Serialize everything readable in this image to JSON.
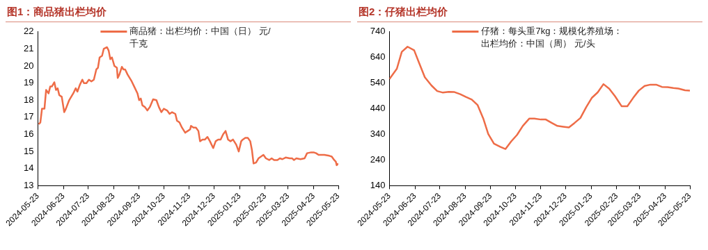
{
  "chart_data": [
    {
      "type": "line",
      "title": "图1：商品猪出栏均价",
      "legend": "top",
      "marker": "none",
      "line_style": "solid",
      "xlim": [
        "2024-05-23",
        "2025-05-23"
      ],
      "ylim": [
        13,
        22
      ],
      "yticks": [
        13,
        14,
        15,
        16,
        17,
        18,
        19,
        20,
        21,
        22
      ],
      "xticks": [
        "2024-05-23",
        "2024-06-23",
        "2024-07-23",
        "2024-08-23",
        "2024-09-23",
        "2024-10-23",
        "2024-11-23",
        "2024-12-23",
        "2025-01-23",
        "2025-02-23",
        "2025-03-23",
        "2025-04-23",
        "2025-05-23"
      ],
      "x": [
        "2024-05-24",
        "2024-05-26",
        "2024-05-28",
        "2024-05-31",
        "2024-06-02",
        "2024-06-05",
        "2024-06-07",
        "2024-06-09",
        "2024-06-12",
        "2024-06-14",
        "2024-06-16",
        "2024-06-18",
        "2024-06-21",
        "2024-06-24",
        "2024-06-26",
        "2024-06-30",
        "2024-07-05",
        "2024-07-08",
        "2024-07-10",
        "2024-07-13",
        "2024-07-16",
        "2024-07-18",
        "2024-07-21",
        "2024-07-24",
        "2024-07-27",
        "2024-07-30",
        "2024-08-02",
        "2024-08-04",
        "2024-08-06",
        "2024-08-09",
        "2024-08-11",
        "2024-08-15",
        "2024-08-17",
        "2024-08-19",
        "2024-08-21",
        "2024-08-24",
        "2024-08-27",
        "2024-08-28",
        "2024-08-30",
        "2024-09-02",
        "2024-09-04",
        "2024-09-06",
        "2024-09-09",
        "2024-09-14",
        "2024-09-17",
        "2024-09-21",
        "2024-09-23",
        "2024-09-25",
        "2024-09-27",
        "2024-09-30",
        "2024-10-03",
        "2024-10-06",
        "2024-10-10",
        "2024-10-14",
        "2024-10-17",
        "2024-10-20",
        "2024-10-23",
        "2024-10-27",
        "2024-10-30",
        "2024-11-02",
        "2024-11-06",
        "2024-11-08",
        "2024-11-11",
        "2024-11-14",
        "2024-11-18",
        "2024-11-21",
        "2024-11-24",
        "2024-11-25",
        "2024-11-28",
        "2024-12-01",
        "2024-12-04",
        "2024-12-06",
        "2024-12-09",
        "2024-12-12",
        "2024-12-15",
        "2024-12-18",
        "2024-12-22",
        "2024-12-25",
        "2024-12-28",
        "2024-12-31",
        "2025-01-03",
        "2025-01-06",
        "2025-01-09",
        "2025-01-12",
        "2025-01-15",
        "2025-01-19",
        "2025-01-22",
        "2025-01-25",
        "2025-01-27",
        "2025-01-30",
        "2025-02-02",
        "2025-02-05",
        "2025-02-07",
        "2025-02-09",
        "2025-02-12",
        "2025-02-15",
        "2025-02-18",
        "2025-02-21",
        "2025-02-24",
        "2025-02-28",
        "2025-03-03",
        "2025-03-06",
        "2025-03-10",
        "2025-03-13",
        "2025-03-16",
        "2025-03-20",
        "2025-03-25",
        "2025-03-28",
        "2025-03-30",
        "2025-04-02",
        "2025-04-07",
        "2025-04-12",
        "2025-04-15",
        "2025-04-20",
        "2025-04-23",
        "2025-04-26",
        "2025-04-29",
        "2025-05-06",
        "2025-05-12",
        "2025-05-15",
        "2025-05-18",
        "2025-05-20",
        "2025-05-21",
        "2025-05-23"
      ],
      "series": [
        {
          "name": "商品猪：出栏均价：中国（日） 元/千克",
          "color": "#ee6c47",
          "values": [
            16.6,
            16.7,
            17.5,
            17.5,
            18.6,
            18.4,
            18.8,
            18.8,
            19.05,
            18.6,
            18.7,
            18.3,
            18.2,
            17.3,
            17.5,
            18.0,
            18.4,
            18.7,
            18.5,
            18.9,
            19.2,
            19.0,
            19.0,
            19.2,
            19.1,
            19.2,
            19.8,
            19.9,
            20.5,
            20.6,
            21.0,
            21.1,
            20.9,
            20.4,
            20.5,
            20.0,
            19.9,
            19.3,
            19.5,
            19.95,
            19.8,
            19.8,
            19.5,
            19.1,
            18.8,
            18.4,
            18.0,
            18.1,
            17.7,
            17.6,
            17.4,
            17.6,
            18.05,
            18.0,
            17.6,
            17.3,
            17.5,
            17.4,
            17.2,
            17.3,
            17.2,
            16.8,
            16.7,
            16.4,
            16.1,
            16.2,
            16.3,
            16.5,
            16.4,
            16.4,
            16.2,
            15.6,
            15.7,
            15.7,
            15.85,
            15.6,
            15.2,
            15.6,
            15.7,
            15.7,
            16.0,
            16.2,
            15.7,
            15.6,
            15.7,
            15.4,
            15.0,
            15.6,
            15.7,
            15.8,
            15.8,
            15.6,
            15.1,
            14.3,
            14.35,
            14.6,
            14.7,
            14.8,
            14.6,
            14.5,
            14.6,
            14.5,
            14.5,
            14.6,
            14.55,
            14.65,
            14.6,
            14.6,
            14.5,
            14.6,
            14.55,
            14.6,
            14.9,
            14.95,
            14.95,
            14.9,
            14.8,
            14.8,
            14.75,
            14.7,
            14.5,
            14.4,
            14.2,
            14.3
          ]
        }
      ]
    },
    {
      "type": "line",
      "title": "图2：仔猪出栏均价",
      "legend": "top",
      "marker": "none",
      "line_style": "solid",
      "xlim": [
        "2024-05-23",
        "2025-05-23"
      ],
      "ylim": [
        140,
        740
      ],
      "yticks": [
        140,
        240,
        340,
        440,
        540,
        640,
        740
      ],
      "xticks": [
        "2024-05-23",
        "2024-06-23",
        "2024-07-23",
        "2024-08-23",
        "2024-09-23",
        "2024-10-23",
        "2024-11-23",
        "2024-12-23",
        "2025-01-23",
        "2025-02-23",
        "2025-03-23",
        "2025-04-23",
        "2025-05-23"
      ],
      "x": [
        "2024-05-23",
        "2024-06-01",
        "2024-06-07",
        "2024-06-14",
        "2024-06-22",
        "2024-06-28",
        "2024-07-05",
        "2024-07-13",
        "2024-07-20",
        "2024-07-27",
        "2024-08-03",
        "2024-08-10",
        "2024-08-17",
        "2024-08-24",
        "2024-08-31",
        "2024-09-07",
        "2024-09-14",
        "2024-09-20",
        "2024-09-27",
        "2024-10-05",
        "2024-10-11",
        "2024-10-18",
        "2024-10-25",
        "2024-11-01",
        "2024-11-09",
        "2024-11-15",
        "2024-11-23",
        "2024-11-29",
        "2024-12-06",
        "2024-12-13",
        "2024-12-20",
        "2024-12-27",
        "2025-01-03",
        "2025-01-10",
        "2025-01-17",
        "2025-01-24",
        "2025-01-31",
        "2025-02-07",
        "2025-02-14",
        "2025-02-21",
        "2025-03-01",
        "2025-03-08",
        "2025-03-15",
        "2025-03-22",
        "2025-03-29",
        "2025-04-05",
        "2025-04-12",
        "2025-04-19",
        "2025-04-26",
        "2025-05-03",
        "2025-05-09",
        "2025-05-17",
        "2025-05-23"
      ],
      "series": [
        {
          "name": "仔猪：每头重7kg：规模化养殖场：出栏均价：中国（周） 元/头",
          "color": "#ee6c47",
          "values": [
            556,
            596,
            662,
            682,
            668,
            619,
            563,
            531,
            509,
            503,
            506,
            505,
            497,
            486,
            476,
            455,
            402,
            342,
            304,
            291,
            283,
            313,
            338,
            373,
            402,
            402,
            398,
            398,
            385,
            373,
            370,
            367,
            385,
            404,
            446,
            483,
            504,
            536,
            518,
            489,
            450,
            450,
            482,
            511,
            529,
            534,
            534,
            525,
            524,
            521,
            519,
            512,
            511
          ]
        }
      ]
    }
  ]
}
